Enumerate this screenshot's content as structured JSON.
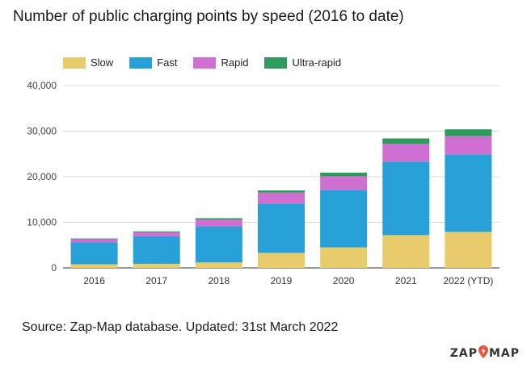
{
  "title": "Number of public charging points by speed (2016 to date)",
  "source": "Source: Zap-Map database. Updated: 31st March 2022",
  "logo": {
    "left": "ZAP",
    "right": "MAP",
    "pin_icon": "lightning-pin-icon",
    "pin_color": "#e8523a"
  },
  "legend": [
    {
      "label": "Slow",
      "color": "#e8cc6b"
    },
    {
      "label": "Fast",
      "color": "#26a0d6"
    },
    {
      "label": "Rapid",
      "color": "#cf6fd2"
    },
    {
      "label": "Ultra-rapid",
      "color": "#2e9a5c"
    }
  ],
  "chart_data": {
    "type": "bar",
    "stacked": true,
    "title": "Number of public charging points by speed (2016 to date)",
    "categories": [
      "2016",
      "2017",
      "2018",
      "2019",
      "2020",
      "2021",
      "2022 (YTD)"
    ],
    "series": [
      {
        "name": "Slow",
        "color": "#e8cc6b",
        "values": [
          800,
          900,
          1200,
          3300,
          4500,
          7200,
          7900
        ]
      },
      {
        "name": "Fast",
        "color": "#26a0d6",
        "values": [
          4800,
          6000,
          7900,
          10800,
          12600,
          16100,
          17000
        ]
      },
      {
        "name": "Rapid",
        "color": "#cf6fd2",
        "values": [
          700,
          900,
          1500,
          2400,
          3000,
          3900,
          4000
        ]
      },
      {
        "name": "Ultra-rapid",
        "color": "#2e9a5c",
        "values": [
          150,
          200,
          300,
          500,
          800,
          1200,
          1500
        ]
      }
    ],
    "yticks": [
      0,
      10000,
      20000,
      30000,
      40000
    ],
    "ytick_labels": [
      "0",
      "10,000",
      "20,000",
      "30,000",
      "40,000"
    ],
    "ylim": [
      0,
      40000
    ],
    "xlabel": "",
    "ylabel": "",
    "grid": true,
    "legend_position": "top-left"
  }
}
